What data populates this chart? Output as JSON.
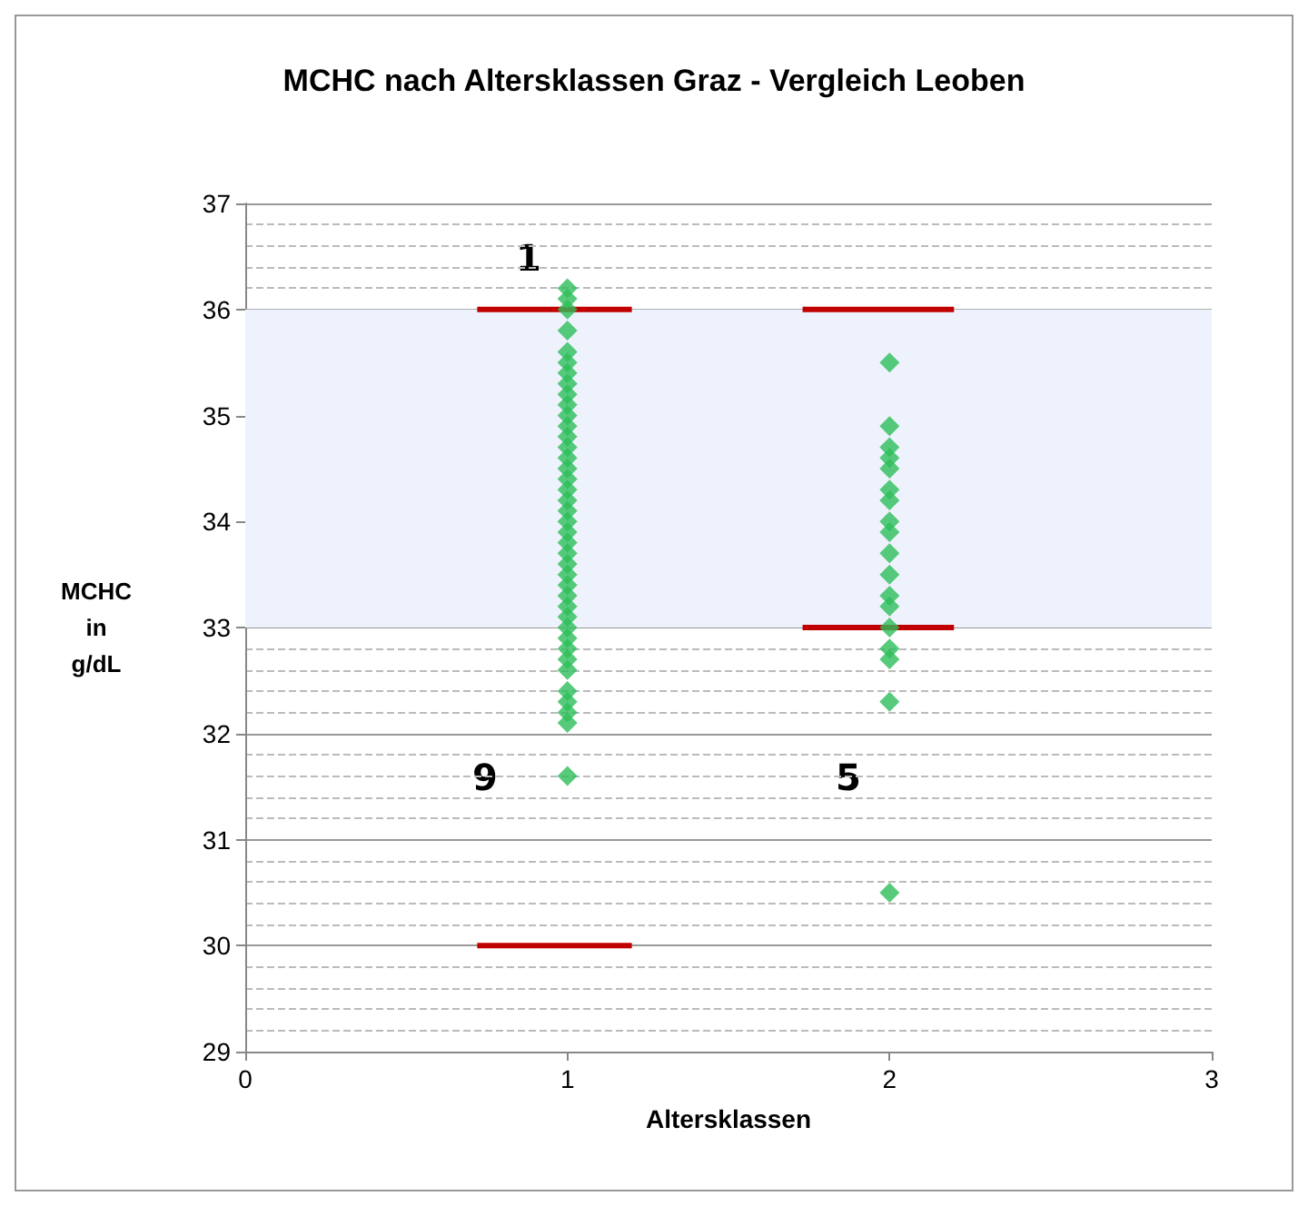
{
  "chart_data": {
    "type": "scatter",
    "title": "MCHC nach Altersklassen Graz - Vergleich Leoben",
    "xlabel": "Altersklassen",
    "ylabel": "MCHC\nin\ng/dL",
    "xlim": [
      0,
      3
    ],
    "xticks": [
      0,
      1,
      2,
      3
    ],
    "ylim": [
      29,
      37
    ],
    "yticks": [
      29,
      30,
      31,
      32,
      33,
      34,
      35,
      36,
      37
    ],
    "grid": "y",
    "series": [
      {
        "color": "#2dbe5a",
        "marker": "diamond",
        "x": [
          1,
          1,
          1,
          1,
          1,
          1,
          1,
          1,
          1,
          1,
          1,
          1,
          1,
          1,
          1,
          1,
          1,
          1,
          1,
          1,
          1,
          1,
          1,
          1,
          1,
          1,
          1,
          1,
          1,
          1,
          1,
          1,
          1,
          1,
          1,
          1,
          1,
          1,
          1,
          1
        ],
        "values": [
          36.2,
          36.0,
          35.8,
          35.6,
          35.5,
          35.4,
          35.3,
          35.2,
          35.1,
          35.0,
          34.9,
          34.8,
          34.7,
          34.6,
          34.5,
          34.4,
          34.3,
          34.2,
          34.1,
          34.0,
          33.9,
          33.8,
          33.7,
          33.6,
          33.5,
          33.4,
          33.3,
          33.2,
          33.1,
          33.0,
          32.9,
          32.8,
          32.7,
          32.6,
          32.4,
          32.3,
          32.2,
          32.1,
          31.6,
          36.1
        ]
      },
      {
        "color": "#2dbe5a",
        "marker": "diamond",
        "x": [
          2,
          2,
          2,
          2,
          2,
          2,
          2,
          2,
          2,
          2,
          2,
          2,
          2,
          2,
          2,
          2,
          2,
          2
        ],
        "values": [
          35.5,
          34.9,
          34.7,
          34.6,
          34.5,
          34.3,
          34.2,
          34.0,
          33.9,
          33.7,
          33.5,
          33.3,
          33.2,
          33.0,
          32.8,
          32.7,
          32.3,
          30.5
        ]
      },
      {
        "type": "line",
        "marker": "none",
        "color": "#c00000",
        "x": [
          0.72,
          1.2
        ],
        "values": [
          36,
          36
        ]
      },
      {
        "type": "line",
        "marker": "none",
        "color": "#c00000",
        "x": [
          0.72,
          1.2
        ],
        "values": [
          30,
          30
        ]
      },
      {
        "type": "line",
        "marker": "none",
        "color": "#c00000",
        "x": [
          1.73,
          2.2
        ],
        "values": [
          36,
          36
        ]
      },
      {
        "type": "line",
        "marker": "none",
        "color": "#c00000",
        "x": [
          1.73,
          2.2
        ],
        "values": [
          33,
          33
        ]
      }
    ],
    "bands": [
      {
        "axis": "y",
        "from": 33,
        "to": 36,
        "color": "#eef2fc"
      }
    ],
    "annotations": [
      "1",
      "9",
      "5"
    ]
  }
}
